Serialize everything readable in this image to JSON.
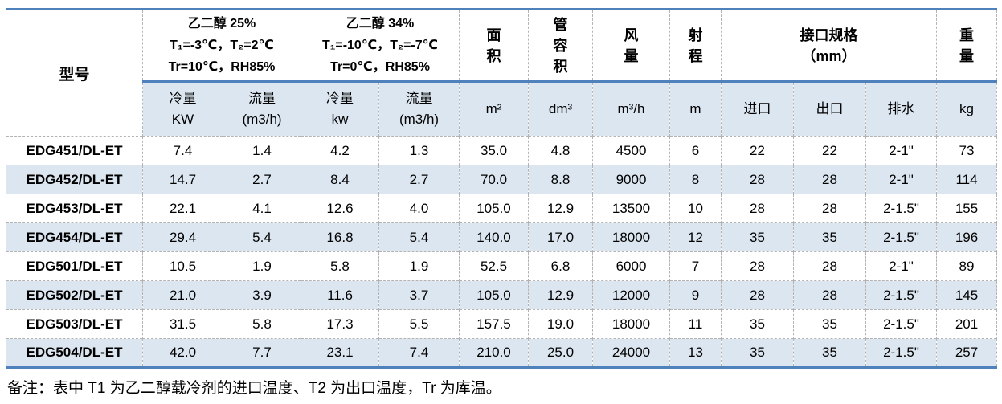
{
  "colors": {
    "accent_border_blue": "#4f81bd",
    "row_alt_fill": "#dce6f1",
    "grid_line_gray": "#b3b3b3"
  },
  "table": {
    "header": {
      "model": "型号",
      "group_25": "乙二醇 25%\nT₁=-3℃，T₂=2℃\nTr=10℃，RH85%",
      "group_34": "乙二醇 34%\nT₁=-10℃，T₂=-7℃\nTr=0℃，RH85%",
      "area": "面\n积",
      "tube_volume": "管\n容\n积",
      "air_flow": "风\n量",
      "throw": "射\n程",
      "connection": "接口规格\n（mm）",
      "weight": "重\n量",
      "sub": {
        "cooling_25": "冷量\nKW",
        "flow_25": "流量\n(m3/h)",
        "cooling_34": "冷量\nkw",
        "flow_34": "流量\n(m3/h)",
        "area_unit": "m²",
        "tube_unit": "dm³",
        "air_unit": "m³/h",
        "throw_unit": "m",
        "inlet": "进口",
        "outlet": "出口",
        "drain": "排水",
        "weight_unit": "kg"
      }
    },
    "rows": [
      {
        "model": "EDG451/DL-ET",
        "values": [
          "7.4",
          "1.4",
          "4.2",
          "1.3",
          "35.0",
          "4.8",
          "4500",
          "6",
          "22",
          "22",
          "2-1\"",
          "73"
        ]
      },
      {
        "model": "EDG452/DL-ET",
        "values": [
          "14.7",
          "2.7",
          "8.4",
          "2.7",
          "70.0",
          "8.8",
          "9000",
          "8",
          "28",
          "28",
          "2-1\"",
          "114"
        ]
      },
      {
        "model": "EDG453/DL-ET",
        "values": [
          "22.1",
          "4.1",
          "12.6",
          "4.0",
          "105.0",
          "12.9",
          "13500",
          "10",
          "28",
          "28",
          "2-1.5\"",
          "155"
        ]
      },
      {
        "model": "EDG454/DL-ET",
        "values": [
          "29.4",
          "5.4",
          "16.8",
          "5.4",
          "140.0",
          "17.0",
          "18000",
          "12",
          "35",
          "35",
          "2-1.5\"",
          "196"
        ]
      },
      {
        "model": "EDG501/DL-ET",
        "values": [
          "10.5",
          "1.9",
          "5.8",
          "1.9",
          "52.5",
          "6.8",
          "6000",
          "7",
          "28",
          "28",
          "2-1\"",
          "89"
        ]
      },
      {
        "model": "EDG502/DL-ET",
        "values": [
          "21.0",
          "3.9",
          "11.6",
          "3.7",
          "105.0",
          "12.9",
          "12000",
          "9",
          "28",
          "28",
          "2-1.5\"",
          "145"
        ]
      },
      {
        "model": "EDG503/DL-ET",
        "values": [
          "31.5",
          "5.8",
          "17.3",
          "5.5",
          "157.5",
          "19.0",
          "18000",
          "11",
          "35",
          "35",
          "2-1.5\"",
          "201"
        ]
      },
      {
        "model": "EDG504/DL-ET",
        "values": [
          "42.0",
          "7.7",
          "23.1",
          "7.4",
          "210.0",
          "25.0",
          "24000",
          "13",
          "35",
          "35",
          "2-1.5\"",
          "257"
        ]
      }
    ]
  },
  "note": "备注：表中 T1 为乙二醇载冷剂的进口温度、T2 为出口温度，Tr 为库温。"
}
